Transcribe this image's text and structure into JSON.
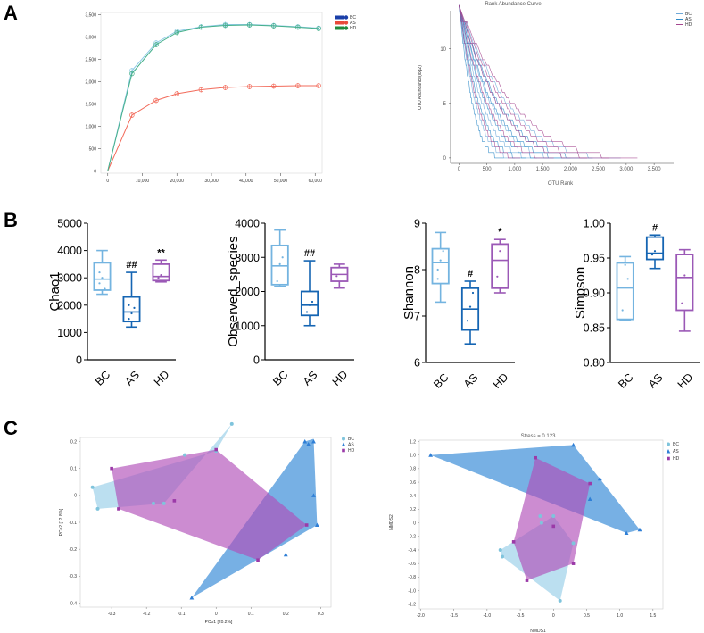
{
  "panel_labels": {
    "a": "A",
    "b": "B",
    "c": "C"
  },
  "colors": {
    "bc": "#8ecae6",
    "as": "#3d8fd9",
    "hd": "#b04fb8",
    "rar_bc": "#1a3fa8",
    "rar_as": "#e84a3a",
    "rar_hd": "#1f8a3b",
    "box_bc": "#74b4e0",
    "box_as": "#1565b3",
    "box_hd": "#9b59b6"
  },
  "chart_data": [
    {
      "id": "rarefaction",
      "type": "line",
      "title": "",
      "x_ticks": [
        "0",
        "10,000",
        "20,000",
        "30,000",
        "40,000",
        "50,000",
        "60,000"
      ],
      "y_ticks": [
        "0",
        "500",
        "1,000",
        "1,500",
        "2,000",
        "2,500",
        "3,000",
        "3,500"
      ],
      "xlim": [
        -2000,
        62000
      ],
      "ylim": [
        -50,
        3550
      ],
      "legend": [
        "BC",
        "AS",
        "HD"
      ],
      "series": [
        {
          "name": "BC",
          "x": [
            0,
            7000,
            14000,
            20000,
            27000,
            34000,
            41000,
            48000,
            55000,
            61000
          ],
          "values": [
            0,
            2250,
            2870,
            3130,
            3230,
            3280,
            3280,
            3260,
            3230,
            3200
          ]
        },
        {
          "name": "AS",
          "x": [
            0,
            7000,
            14000,
            20000,
            27000,
            34000,
            41000,
            48000,
            55000,
            61000
          ],
          "values": [
            0,
            1250,
            1580,
            1730,
            1820,
            1870,
            1890,
            1900,
            1910,
            1910
          ]
        },
        {
          "name": "HD",
          "x": [
            0,
            7000,
            14000,
            20000,
            27000,
            34000,
            41000,
            48000,
            55000,
            61000
          ],
          "values": [
            0,
            2180,
            2830,
            3100,
            3220,
            3260,
            3270,
            3250,
            3220,
            3190
          ]
        }
      ]
    },
    {
      "id": "rank_abundance",
      "type": "line",
      "title": "Rank Abundance Curve",
      "xlabel": "OTU Rank",
      "ylabel": "OTU Abundance(log2)",
      "x_ticks": [
        "0",
        "500",
        "1,000",
        "1,500",
        "2,000",
        "2,500",
        "3,000",
        "3,500"
      ],
      "y_ticks": [
        "0",
        "5",
        "10"
      ],
      "xlim": [
        -150,
        3850
      ],
      "ylim": [
        -0.5,
        13.5
      ],
      "legend": [
        "BC",
        "AS",
        "HD"
      ],
      "series": [
        {
          "name": "BC",
          "end_ranks": [
            1000,
            1400,
            1900,
            2300,
            2900
          ]
        },
        {
          "name": "AS",
          "end_ranks": [
            800,
            1200,
            1600,
            2000,
            2400
          ]
        },
        {
          "name": "HD",
          "end_ranks": [
            1100,
            1700,
            2300,
            2700,
            3200
          ]
        }
      ]
    },
    {
      "id": "chao1",
      "type": "box",
      "ylabel": "Chao1",
      "categories": [
        "BC",
        "AS",
        "HD"
      ],
      "y_ticks": [
        "0",
        "1000",
        "2000",
        "3000",
        "4000",
        "5000"
      ],
      "ylim": [
        0,
        5000
      ],
      "boxes": [
        {
          "name": "BC",
          "min": 2400,
          "q1": 2550,
          "median": 2950,
          "q3": 3550,
          "max": 4000,
          "points": [
            3200,
            3000,
            2600,
            2800
          ]
        },
        {
          "name": "AS",
          "min": 1200,
          "q1": 1400,
          "median": 1750,
          "q3": 2300,
          "max": 3200,
          "points": [
            1500,
            1700,
            1900,
            2000
          ]
        },
        {
          "name": "HD",
          "min": 2850,
          "q1": 2900,
          "median": 3050,
          "q3": 3500,
          "max": 3650,
          "points": [
            3000,
            3100
          ]
        }
      ],
      "sig": [
        "",
        "##",
        "**"
      ]
    },
    {
      "id": "observed_species",
      "type": "box",
      "ylabel": "Observed_species",
      "categories": [
        "BC",
        "AS",
        "HD"
      ],
      "y_ticks": [
        "0",
        "1000",
        "2000",
        "3000",
        "4000"
      ],
      "ylim": [
        0,
        4000
      ],
      "boxes": [
        {
          "name": "BC",
          "min": 2150,
          "q1": 2200,
          "median": 2750,
          "q3": 3350,
          "max": 3800,
          "points": [
            2300,
            2800,
            3000
          ]
        },
        {
          "name": "AS",
          "min": 1000,
          "q1": 1300,
          "median": 1600,
          "q3": 2000,
          "max": 2900,
          "points": [
            1400,
            1600,
            1700
          ]
        },
        {
          "name": "HD",
          "min": 2100,
          "q1": 2300,
          "median": 2500,
          "q3": 2700,
          "max": 2800,
          "points": [
            2450
          ]
        }
      ],
      "sig": [
        "",
        "##",
        ""
      ]
    },
    {
      "id": "shannon",
      "type": "box",
      "ylabel": "Shannon",
      "categories": [
        "BC",
        "AS",
        "HD"
      ],
      "y_ticks": [
        "6",
        "7",
        "8",
        "9"
      ],
      "ylim": [
        6,
        9
      ],
      "boxes": [
        {
          "name": "BC",
          "min": 7.3,
          "q1": 7.7,
          "median": 8.15,
          "q3": 8.45,
          "max": 8.8,
          "points": [
            8.0,
            8.2,
            8.4,
            7.8
          ]
        },
        {
          "name": "AS",
          "min": 6.4,
          "q1": 6.7,
          "median": 7.15,
          "q3": 7.6,
          "max": 7.75,
          "points": [
            6.9,
            7.2,
            7.5
          ]
        },
        {
          "name": "HD",
          "min": 7.5,
          "q1": 7.6,
          "median": 8.2,
          "q3": 8.55,
          "max": 8.65,
          "points": [
            7.85,
            8.4
          ]
        }
      ],
      "sig": [
        "",
        "#",
        "*"
      ]
    },
    {
      "id": "simpson",
      "type": "box",
      "ylabel": "Simpson",
      "categories": [
        "BC",
        "AS",
        "HD"
      ],
      "y_ticks": [
        "0.80",
        "0.85",
        "0.90",
        "0.95",
        "1.00"
      ],
      "ylim": [
        0.8,
        1.0
      ],
      "boxes": [
        {
          "name": "BC",
          "min": 0.86,
          "q1": 0.862,
          "median": 0.907,
          "q3": 0.943,
          "max": 0.952,
          "points": [
            0.875,
            0.94,
            0.92
          ]
        },
        {
          "name": "AS",
          "min": 0.935,
          "q1": 0.948,
          "median": 0.957,
          "q3": 0.98,
          "max": 0.983,
          "points": [
            0.955,
            0.96
          ]
        },
        {
          "name": "HD",
          "min": 0.845,
          "q1": 0.875,
          "median": 0.922,
          "q3": 0.955,
          "max": 0.962,
          "points": [
            0.885,
            0.925
          ]
        }
      ],
      "sig": [
        "",
        "#",
        ""
      ]
    },
    {
      "id": "pcoa",
      "type": "scatter",
      "xlabel": "PCo1 [20.2%]",
      "ylabel": "PCo2 [12.8%]",
      "x_ticks": [
        "-0.3",
        "-0.2",
        "-0.1",
        "0",
        "0.1",
        "0.2",
        "0.3"
      ],
      "y_ticks": [
        "-0.4",
        "-0.3",
        "-0.2",
        "-0.1",
        "0",
        "0.1",
        "0.2"
      ],
      "xlim": [
        -0.39,
        0.33
      ],
      "ylim": [
        -0.415,
        0.215
      ],
      "legend": [
        "BC",
        "AS",
        "HD"
      ],
      "series": [
        {
          "name": "BC",
          "points": [
            [
              -0.355,
              0.03
            ],
            [
              -0.34,
              -0.05
            ],
            [
              -0.18,
              -0.03
            ],
            [
              -0.15,
              -0.03
            ],
            [
              -0.09,
              0.15
            ],
            [
              0.045,
              0.265
            ],
            [
              0.0,
              0.165
            ]
          ],
          "hull": [
            [
              -0.355,
              0.03
            ],
            [
              -0.34,
              -0.05
            ],
            [
              -0.15,
              -0.03
            ],
            [
              0.045,
              0.265
            ],
            [
              0.0,
              0.165
            ]
          ]
        },
        {
          "name": "AS",
          "points": [
            [
              -0.07,
              -0.38
            ],
            [
              0.2,
              -0.22
            ],
            [
              0.265,
              0.19
            ],
            [
              0.28,
              0.2
            ],
            [
              0.28,
              0.0
            ],
            [
              0.29,
              -0.11
            ],
            [
              0.255,
              0.2
            ]
          ],
          "hull": [
            [
              -0.07,
              -0.38
            ],
            [
              0.29,
              -0.11
            ],
            [
              0.28,
              0.21
            ],
            [
              0.255,
              0.2
            ]
          ]
        },
        {
          "name": "HD",
          "points": [
            [
              -0.3,
              0.1
            ],
            [
              -0.28,
              -0.05
            ],
            [
              -0.12,
              -0.02
            ],
            [
              0.0,
              0.17
            ],
            [
              0.12,
              -0.24
            ],
            [
              0.26,
              -0.11
            ]
          ],
          "hull": [
            [
              -0.3,
              0.1
            ],
            [
              -0.28,
              -0.05
            ],
            [
              0.12,
              -0.24
            ],
            [
              0.26,
              -0.11
            ],
            [
              0.0,
              0.17
            ]
          ]
        }
      ]
    },
    {
      "id": "nmds",
      "type": "scatter",
      "title": "Stress = 0.123",
      "xlabel": "NMDS1",
      "ylabel": "NMDS2",
      "x_ticks": [
        "-2.0",
        "-1.5",
        "-1.0",
        "-0.5",
        "0",
        "0.5",
        "1.0",
        "1.5"
      ],
      "y_ticks": [
        "-1.2",
        "-1.0",
        "-0.8",
        "-0.6",
        "-0.4",
        "-0.2",
        "0",
        "0.2",
        "0.4",
        "0.6",
        "0.8",
        "1.0",
        "1.2"
      ],
      "xlim": [
        -2.02,
        1.65
      ],
      "ylim": [
        -1.27,
        1.22
      ],
      "legend": [
        "BC",
        "AS",
        "HD"
      ],
      "series": [
        {
          "name": "BC",
          "points": [
            [
              -0.8,
              -0.4
            ],
            [
              -0.77,
              -0.5
            ],
            [
              -0.2,
              0.1
            ],
            [
              -0.18,
              0.0
            ],
            [
              0.0,
              0.1
            ],
            [
              0.3,
              -0.3
            ],
            [
              0.1,
              -1.15
            ]
          ],
          "hull": [
            [
              -0.8,
              -0.4
            ],
            [
              -0.77,
              -0.5
            ],
            [
              0.1,
              -1.15
            ],
            [
              0.3,
              -0.3
            ],
            [
              0.0,
              0.1
            ]
          ]
        },
        {
          "name": "AS",
          "points": [
            [
              -1.85,
              1.0
            ],
            [
              0.3,
              1.15
            ],
            [
              0.7,
              0.65
            ],
            [
              0.55,
              0.35
            ],
            [
              1.1,
              -0.15
            ],
            [
              1.3,
              -0.1
            ]
          ],
          "hull": [
            [
              -1.85,
              1.0
            ],
            [
              0.3,
              1.15
            ],
            [
              1.3,
              -0.1
            ],
            [
              1.1,
              -0.15
            ]
          ]
        },
        {
          "name": "HD",
          "points": [
            [
              -0.27,
              0.96
            ],
            [
              0.55,
              0.58
            ],
            [
              0.3,
              -0.6
            ],
            [
              -0.4,
              -0.85
            ],
            [
              -0.6,
              -0.28
            ],
            [
              0.0,
              -0.05
            ]
          ],
          "hull": [
            [
              -0.6,
              -0.28
            ],
            [
              -0.27,
              0.96
            ],
            [
              0.55,
              0.58
            ],
            [
              0.3,
              -0.6
            ],
            [
              -0.4,
              -0.85
            ]
          ]
        }
      ]
    }
  ]
}
